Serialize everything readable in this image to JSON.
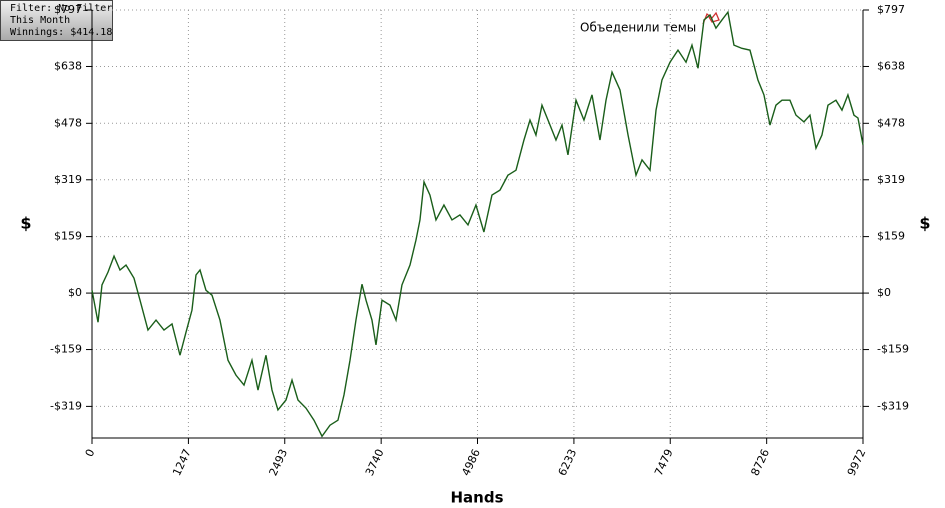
{
  "chart_data": {
    "type": "line",
    "filter_box": [
      "Filter: No Filter",
      "This Month",
      "Winnings: $414.18"
    ],
    "annotation": "Объеденили темы",
    "xlabel": "Hands",
    "ylabel": "$",
    "y2label": "$",
    "xlim": [
      0,
      9972
    ],
    "xticks": [
      0,
      1247,
      2493,
      3740,
      4986,
      6233,
      7479,
      8726,
      9972
    ],
    "ylim": [
      -408,
      797
    ],
    "yticks": [
      {
        "value": -319,
        "label": "-$319"
      },
      {
        "value": -159,
        "label": "-$159"
      },
      {
        "value": 0,
        "label": "$0"
      },
      {
        "value": 159,
        "label": "$159"
      },
      {
        "value": 319,
        "label": "$319"
      },
      {
        "value": 478,
        "label": "$478"
      },
      {
        "value": 638,
        "label": "$638"
      },
      {
        "value": 797,
        "label": "$797"
      }
    ],
    "grid": true,
    "series": [
      {
        "color": "#1a5e1a",
        "x": [
          0,
          78,
          129,
          207,
          285,
          362,
          440,
          543,
          621,
          724,
          828,
          931,
          1035,
          1138,
          1216,
          1293,
          1345,
          1397,
          1474,
          1552,
          1655,
          1759,
          1862,
          1966,
          2069,
          2147,
          2250,
          2328,
          2405,
          2509,
          2587,
          2664,
          2768,
          2871,
          2975,
          3078,
          3181,
          3259,
          3337,
          3414,
          3492,
          3544,
          3621,
          3673,
          3751,
          3854,
          3932,
          4009,
          4113,
          4190,
          4242,
          4294,
          4371,
          4449,
          4552,
          4656,
          4759,
          4863,
          4966,
          5069,
          5173,
          5277,
          5380,
          5484,
          5587,
          5665,
          5742,
          5820,
          5898,
          6001,
          6079,
          6156,
          6260,
          6363,
          6467,
          6570,
          6648,
          6726,
          6829,
          6933,
          7036,
          7114,
          7217,
          7295,
          7372,
          7476,
          7579,
          7683,
          7760,
          7838,
          7915,
          7993,
          8070,
          8148,
          8225,
          8303,
          8406,
          8510,
          8613,
          8691,
          8769,
          8846,
          8924,
          9027,
          9105,
          9208,
          9286,
          9364,
          9441,
          9519,
          9622,
          9700,
          9777,
          9855,
          9907,
          9972
        ],
        "values": [
          8,
          -82,
          23,
          59,
          104,
          65,
          79,
          42,
          -20,
          -104,
          -76,
          -104,
          -87,
          -175,
          -110,
          -48,
          51,
          65,
          8,
          -6,
          -76,
          -189,
          -231,
          -259,
          -189,
          -273,
          -175,
          -273,
          -329,
          -301,
          -245,
          -301,
          -324,
          -358,
          -403,
          -372,
          -358,
          -287,
          -189,
          -76,
          25,
          -20,
          -76,
          -146,
          -20,
          -34,
          -76,
          23,
          79,
          149,
          206,
          313,
          276,
          206,
          248,
          206,
          220,
          192,
          248,
          172,
          276,
          290,
          332,
          346,
          431,
          487,
          445,
          529,
          487,
          431,
          473,
          389,
          543,
          487,
          558,
          431,
          543,
          622,
          572,
          445,
          332,
          375,
          346,
          515,
          600,
          650,
          684,
          650,
          698,
          633,
          769,
          783,
          746,
          769,
          791,
          698,
          689,
          684,
          600,
          558,
          473,
          529,
          543,
          543,
          501,
          482,
          501,
          408,
          445,
          529,
          543,
          515,
          558,
          501,
          493,
          417
        ]
      }
    ]
  }
}
